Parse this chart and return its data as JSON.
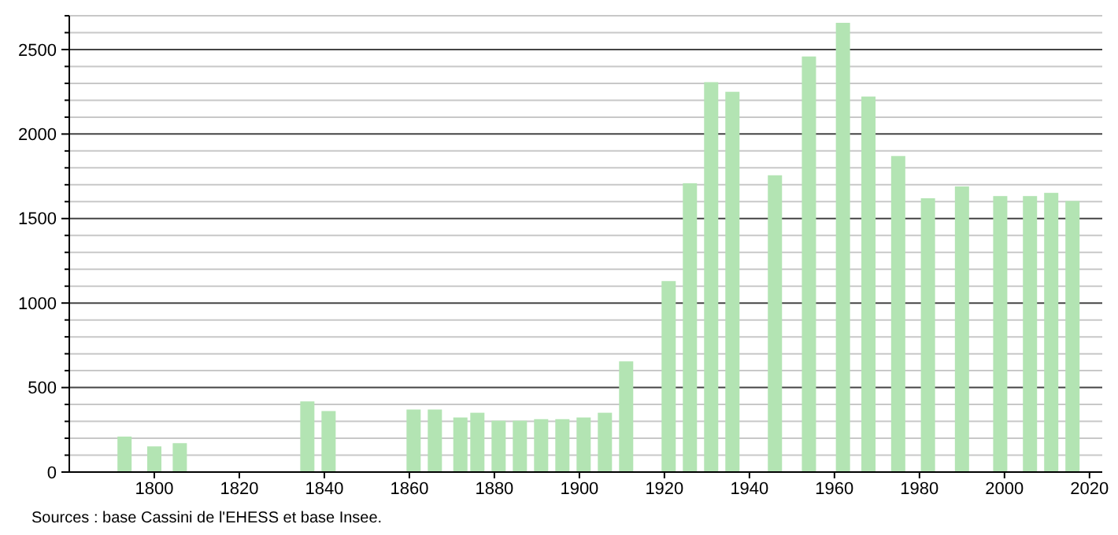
{
  "chart_data": {
    "type": "bar",
    "x": [
      1793,
      1800,
      1806,
      1836,
      1841,
      1861,
      1866,
      1872,
      1876,
      1881,
      1886,
      1891,
      1896,
      1901,
      1906,
      1911,
      1921,
      1926,
      1931,
      1936,
      1946,
      1954,
      1962,
      1968,
      1975,
      1982,
      1990,
      1999,
      2006,
      2011,
      2016
    ],
    "values": [
      210,
      152,
      171,
      418,
      361,
      370,
      370,
      323,
      351,
      304,
      304,
      313,
      313,
      323,
      351,
      655,
      1130,
      1709,
      2307,
      2250,
      1756,
      2459,
      2658,
      2222,
      1870,
      1620,
      1690,
      1633,
      1633,
      1652,
      1604
    ],
    "color": "#b3e4b3",
    "xlim": [
      1780,
      2023
    ],
    "xticks": [
      1800,
      1820,
      1840,
      1860,
      1880,
      1900,
      1920,
      1940,
      1960,
      1980,
      2000,
      2020
    ],
    "ylim": [
      0,
      2700
    ],
    "yticks": [
      0,
      {
        "value": 100,
        "label": null
      },
      {
        "value": 200,
        "label": null
      },
      {
        "value": 300,
        "label": null
      },
      {
        "value": 400,
        "label": null
      },
      500,
      {
        "value": 600,
        "label": null
      },
      {
        "value": 700,
        "label": null
      },
      {
        "value": 800,
        "label": null
      },
      {
        "value": 900,
        "label": null
      },
      1000,
      {
        "value": 1100,
        "label": null
      },
      {
        "value": 1200,
        "label": null
      },
      {
        "value": 1300,
        "label": null
      },
      {
        "value": 1400,
        "label": null
      },
      1500,
      {
        "value": 1600,
        "label": null
      },
      {
        "value": 1700,
        "label": null
      },
      {
        "value": 1800,
        "label": null
      },
      {
        "value": 1900,
        "label": null
      },
      2000,
      {
        "value": 2100,
        "label": null
      },
      {
        "value": 2200,
        "label": null
      },
      {
        "value": 2300,
        "label": null
      },
      {
        "value": 2400,
        "label": null
      },
      2500,
      {
        "value": 2600,
        "label": null
      },
      {
        "value": 2700,
        "label": null
      }
    ],
    "grid": "y",
    "annotations": [
      "Sources : base Cassini de l'EHESS et base Insee."
    ]
  }
}
